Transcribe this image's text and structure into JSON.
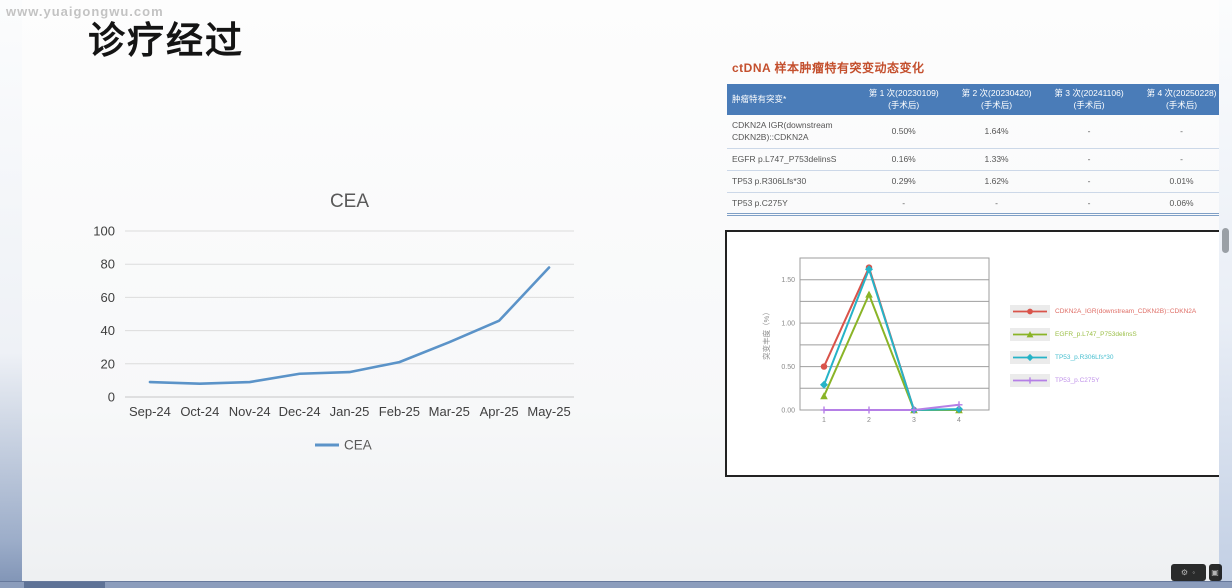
{
  "watermark": "www.yuaigongwu.com",
  "slide": {
    "title": "诊疗经过"
  },
  "mutation_table": {
    "title": "ctDNA 样本肿瘤特有突变动态变化",
    "mutation_col_header": "肿瘤特有突变*",
    "visit_headers": [
      {
        "line1": "第 1 次(20230109)",
        "line2": "(手术后)"
      },
      {
        "line1": "第 2 次(20230420)",
        "line2": "(手术后)"
      },
      {
        "line1": "第 3 次(20241106)",
        "line2": "(手术后)"
      },
      {
        "line1": "第 4 次(20250228)",
        "line2": "(手术后)"
      }
    ],
    "rows": [
      {
        "name_lines": [
          "CDKN2A IGR(downstream",
          "CDKN2B)::CDKN2A"
        ],
        "values": [
          "0.50%",
          "1.64%",
          "-",
          "-"
        ]
      },
      {
        "name_lines": [
          "EGFR p.L747_P753delinsS"
        ],
        "values": [
          "0.16%",
          "1.33%",
          "-",
          "-"
        ]
      },
      {
        "name_lines": [
          "TP53 p.R306Lfs*30"
        ],
        "values": [
          "0.29%",
          "1.62%",
          "-",
          "0.01%"
        ]
      },
      {
        "name_lines": [
          "TP53 p.C275Y"
        ],
        "values": [
          "-",
          "-",
          "-",
          "0.06%"
        ]
      }
    ]
  },
  "chart_data": [
    {
      "id": "cea",
      "type": "line",
      "title": "CEA",
      "categories": [
        "Sep-24",
        "Oct-24",
        "Nov-24",
        "Dec-24",
        "Jan-25",
        "Feb-25",
        "Mar-25",
        "Apr-25",
        "May-25"
      ],
      "series": [
        {
          "name": "CEA",
          "color": "#5b93c8",
          "values": [
            9,
            8,
            9,
            14,
            15,
            21,
            33,
            46,
            78
          ]
        }
      ],
      "xlabel": "",
      "ylabel": "",
      "ylim": [
        0,
        100
      ],
      "yticks": [
        0,
        20,
        40,
        60,
        80,
        100
      ],
      "grid": true,
      "legend_position": "bottom"
    },
    {
      "id": "mutation-trend",
      "type": "line",
      "title": "",
      "x": [
        1,
        2,
        3,
        4
      ],
      "xlabel": "",
      "ylabel": "突变丰度（%）",
      "ylim": [
        0,
        1.75
      ],
      "ytick_interval": 0.25,
      "ytick_labels": [
        {
          "v": 0,
          "t": "0.00"
        },
        {
          "v": 0.5,
          "t": "0.50"
        },
        {
          "v": 1,
          "t": "1.00"
        },
        {
          "v": 1.5,
          "t": "1.50"
        }
      ],
      "grid": true,
      "legend_position": "right",
      "series": [
        {
          "name": "CDKN2A_IGR(downstream_CDKN2B)::CDKN2A",
          "color": "#d9534a",
          "marker": "circle",
          "values": [
            0.5,
            1.64,
            0.0,
            0.0
          ]
        },
        {
          "name": "EGFR_p.L747_P753delinsS",
          "color": "#8ab427",
          "marker": "triangle",
          "values": [
            0.16,
            1.33,
            0.0,
            0.0
          ]
        },
        {
          "name": "TP53_p.R306Lfs*30",
          "color": "#26b3c7",
          "marker": "diamond",
          "values": [
            0.29,
            1.62,
            0.0,
            0.01
          ]
        },
        {
          "name": "TP53_p.C275Y",
          "color": "#b57fe6",
          "marker": "plus",
          "values": [
            0.0,
            0.0,
            0.0,
            0.06
          ]
        }
      ]
    }
  ],
  "icons": {
    "player_pill_icon": "⚙ ◦",
    "player_square_icon": "▣"
  },
  "colors": {
    "table_header_bg": "#4a7cb8",
    "table_title": "#c4502e",
    "accent_blue": "#5b93c8"
  }
}
